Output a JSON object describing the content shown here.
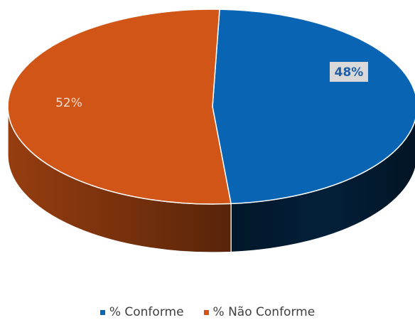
{
  "chart_data": {
    "type": "pie",
    "title": "",
    "categories": [
      "% Conforme",
      "% Não Conforme"
    ],
    "values": [
      48,
      52
    ],
    "labels": [
      "48%",
      "52%"
    ],
    "colors": [
      "#0a64b4",
      "#d05516"
    ],
    "legend_position": "bottom"
  }
}
